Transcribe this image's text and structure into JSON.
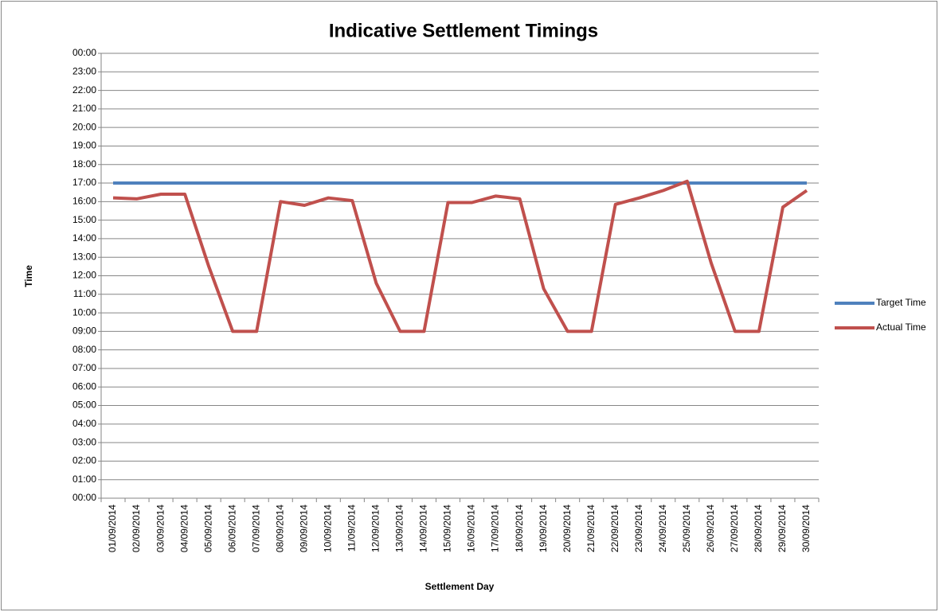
{
  "chart_data": {
    "type": "line",
    "title": "Indicative Settlement Timings",
    "x_label": "Settlement Day",
    "y_label": "Time",
    "categories": [
      "01/09/2014",
      "02/09/2014",
      "03/09/2014",
      "04/09/2014",
      "05/09/2014",
      "06/09/2014",
      "07/09/2014",
      "08/09/2014",
      "09/09/2014",
      "10/09/2014",
      "11/09/2014",
      "12/09/2014",
      "13/09/2014",
      "14/09/2014",
      "15/09/2014",
      "16/09/2014",
      "17/09/2014",
      "18/09/2014",
      "19/09/2014",
      "20/09/2014",
      "21/09/2014",
      "22/09/2014",
      "23/09/2014",
      "24/09/2014",
      "25/09/2014",
      "26/09/2014",
      "27/09/2014",
      "28/09/2014",
      "29/09/2014",
      "30/09/2014"
    ],
    "series": [
      {
        "name": "Target Time",
        "color": "#4f81bd",
        "values": [
          17,
          17,
          17,
          17,
          17,
          17,
          17,
          17,
          17,
          17,
          17,
          17,
          17,
          17,
          17,
          17,
          17,
          17,
          17,
          17,
          17,
          17,
          17,
          17,
          17,
          17,
          17,
          17,
          17,
          17
        ]
      },
      {
        "name": "Actual Time",
        "color": "#c0504d",
        "values": [
          16.2,
          16.15,
          16.4,
          16.4,
          12.5,
          9,
          9,
          16,
          15.8,
          16.2,
          16.05,
          11.6,
          9,
          9,
          15.95,
          15.95,
          16.3,
          16.15,
          11.3,
          9,
          9,
          15.85,
          16.2,
          16.6,
          17.1,
          12.7,
          9,
          9,
          15.7,
          16.6
        ]
      }
    ],
    "ylim": [
      0,
      24
    ],
    "yticks": [
      {
        "value": 0,
        "label": "00:00"
      },
      {
        "value": 1,
        "label": "01:00"
      },
      {
        "value": 2,
        "label": "02:00"
      },
      {
        "value": 3,
        "label": "03:00"
      },
      {
        "value": 4,
        "label": "04:00"
      },
      {
        "value": 5,
        "label": "05:00"
      },
      {
        "value": 6,
        "label": "06:00"
      },
      {
        "value": 7,
        "label": "07:00"
      },
      {
        "value": 8,
        "label": "08:00"
      },
      {
        "value": 9,
        "label": "09:00"
      },
      {
        "value": 10,
        "label": "10:00"
      },
      {
        "value": 11,
        "label": "11:00"
      },
      {
        "value": 12,
        "label": "12:00"
      },
      {
        "value": 13,
        "label": "13:00"
      },
      {
        "value": 14,
        "label": "14:00"
      },
      {
        "value": 15,
        "label": "15:00"
      },
      {
        "value": 16,
        "label": "16:00"
      },
      {
        "value": 17,
        "label": "17:00"
      },
      {
        "value": 18,
        "label": "18:00"
      },
      {
        "value": 19,
        "label": "19:00"
      },
      {
        "value": 20,
        "label": "20:00"
      },
      {
        "value": 21,
        "label": "21:00"
      },
      {
        "value": 22,
        "label": "22:00"
      },
      {
        "value": 23,
        "label": "23:00"
      },
      {
        "value": 24,
        "label": "00:00"
      }
    ],
    "grid": true,
    "legend": "right"
  }
}
